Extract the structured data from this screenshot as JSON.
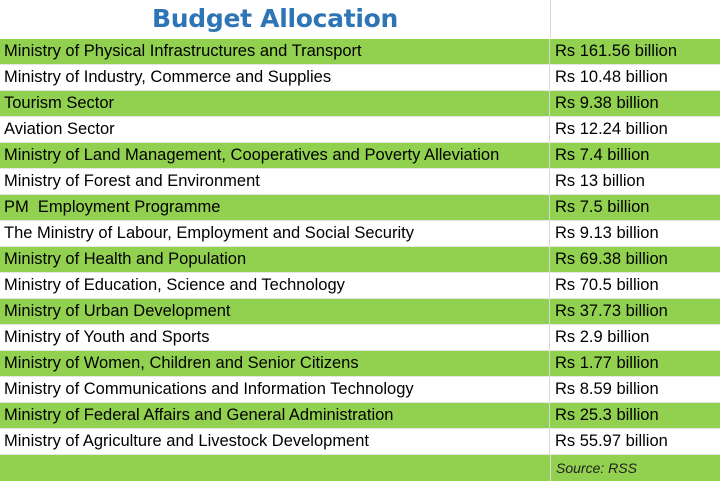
{
  "title": "Budget Allocation",
  "colors": {
    "title": "#2e75b6",
    "row_green": "#92d050",
    "row_white": "#ffffff"
  },
  "rows": [
    {
      "name": "Ministry of Physical Infrastructures and Transport",
      "amount": "Rs 161.56 billion"
    },
    {
      "name": "Ministry of Industry, Commerce and Supplies",
      "amount": "Rs 10.48 billion"
    },
    {
      "name": "Tourism Sector",
      "amount": "Rs 9.38 billion"
    },
    {
      "name": "Aviation Sector",
      "amount": "Rs 12.24 billion"
    },
    {
      "name": "Ministry of Land Management, Cooperatives and Poverty Alleviation",
      "amount": "Rs 7.4 billion"
    },
    {
      "name": "Ministry of Forest and Environment",
      "amount": "Rs 13 billion"
    },
    {
      "name": "PM  Employment Programme",
      "amount": "Rs 7.5 billion"
    },
    {
      "name": "The Ministry of Labour, Employment and Social Security",
      "amount": "Rs 9.13 billion"
    },
    {
      "name": "Ministry of Health and Population",
      "amount": "Rs 69.38 billion"
    },
    {
      "name": "Ministry of Education, Science and Technology",
      "amount": "Rs 70.5 billion"
    },
    {
      "name": "Ministry of Urban Development",
      "amount": "Rs 37.73 billion"
    },
    {
      "name": "Ministry of Youth and Sports",
      "amount": "Rs 2.9 billion"
    },
    {
      "name": "Ministry of Women, Children and Senior Citizens",
      "amount": "Rs 1.77 billion"
    },
    {
      "name": "Ministry of Communications and Information Technology",
      "amount": "Rs 8.59 billion"
    },
    {
      "name": "Ministry of Federal Affairs and General Administration",
      "amount": "Rs 25.3 billion"
    },
    {
      "name": "Ministry of Agriculture and Livestock Development",
      "amount": "Rs 55.97 billion"
    }
  ],
  "source": "Source: RSS"
}
